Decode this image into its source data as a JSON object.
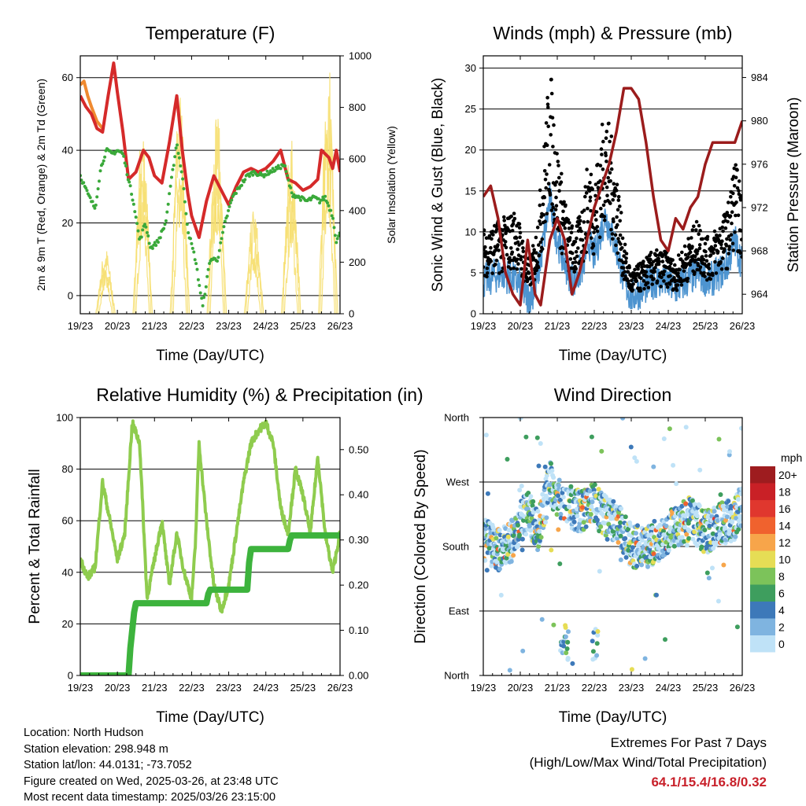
{
  "chart_data": [
    {
      "id": "temperature",
      "type": "line",
      "title": "Temperature (F)",
      "xlabel": "Time (Day/UTC)",
      "ylabel_left": "2m & 9m T (Red, Orange) & 2m Td (Green)",
      "ylabel_right": "Solar Insolation (Yellow)",
      "x_ticks": [
        "19/23",
        "20/23",
        "21/23",
        "22/23",
        "23/23",
        "24/23",
        "25/23",
        "26/23"
      ],
      "xlim": [
        0,
        7
      ],
      "ylim_left": [
        -5,
        66
      ],
      "yticks_left": [
        0,
        20,
        40,
        60
      ],
      "ylim_right": [
        0,
        1000
      ],
      "yticks_right": [
        0,
        200,
        400,
        600,
        800,
        1000
      ],
      "grid": "horizontal",
      "series": [
        {
          "name": "2m T",
          "color": "#d52a2a",
          "axis": "left",
          "x": [
            0,
            0.15,
            0.3,
            0.45,
            0.6,
            0.75,
            0.9,
            1.0,
            1.15,
            1.3,
            1.5,
            1.7,
            1.85,
            2.0,
            2.2,
            2.4,
            2.6,
            2.75,
            2.9,
            3.0,
            3.2,
            3.4,
            3.6,
            3.8,
            4.0,
            4.2,
            4.4,
            4.6,
            4.8,
            5.0,
            5.2,
            5.4,
            5.6,
            5.8,
            6.0,
            6.2,
            6.4,
            6.5,
            6.6,
            6.7,
            6.8,
            6.9,
            7.0
          ],
          "y": [
            55,
            52,
            50,
            46,
            45,
            55,
            64,
            56,
            45,
            32,
            34,
            40,
            38,
            33,
            31,
            42,
            55,
            40,
            28,
            22,
            16,
            26,
            33,
            29,
            25,
            30,
            34,
            35,
            34,
            35,
            37,
            40,
            32,
            31,
            29,
            30,
            32,
            40,
            39,
            38,
            35,
            40,
            34
          ]
        },
        {
          "name": "9m T",
          "color": "#f08a30",
          "axis": "left",
          "x": [
            0,
            0.1,
            0.2,
            0.3,
            0.45,
            0.6
          ],
          "y": [
            58,
            59,
            55,
            52,
            48,
            46
          ]
        },
        {
          "name": "2m Td",
          "color": "#3aa93a",
          "axis": "left",
          "x": [
            0,
            0.2,
            0.4,
            0.55,
            0.7,
            0.85,
            1.0,
            1.15,
            1.3,
            1.45,
            1.6,
            1.75,
            1.9,
            2.1,
            2.3,
            2.5,
            2.6,
            2.75,
            2.9,
            3.1,
            3.3,
            3.5,
            3.7,
            3.9,
            4.1,
            4.3,
            4.5,
            4.7,
            4.9,
            5.1,
            5.3,
            5.5,
            5.7,
            5.9,
            6.1,
            6.3,
            6.45,
            6.6,
            6.8,
            6.9,
            7.0
          ],
          "y": [
            33,
            28,
            24,
            35,
            40,
            39,
            40,
            39,
            32,
            25,
            15,
            20,
            13,
            15,
            20,
            35,
            42,
            33,
            18,
            10,
            -3,
            10,
            10,
            20,
            27,
            30,
            33,
            34,
            33,
            34,
            35,
            36,
            28,
            27,
            26,
            27,
            26,
            27,
            22,
            15,
            17
          ]
        },
        {
          "name": "Solar Insolation",
          "color": "#f6df70",
          "axis": "right",
          "days": [
            0,
            1,
            2,
            3,
            4,
            5,
            6
          ],
          "peaks": [
            260,
            760,
            880,
            810,
            420,
            680,
            1010
          ]
        }
      ]
    },
    {
      "id": "winds",
      "type": "scatter",
      "title": "Winds (mph) & Pressure (mb)",
      "xlabel": "Time (Day/UTC)",
      "ylabel_left": "Sonic Wind & Gust (Blue, Black)",
      "ylabel_right": "Station Pressure (Maroon)",
      "x_ticks": [
        "19/23",
        "20/23",
        "21/23",
        "22/23",
        "23/23",
        "24/23",
        "25/23",
        "26/23"
      ],
      "xlim": [
        0,
        7
      ],
      "ylim_left": [
        0,
        31.5
      ],
      "yticks_left": [
        0,
        5,
        10,
        15,
        20,
        25,
        30
      ],
      "ylim_right": [
        962.2,
        986
      ],
      "yticks_right": [
        964,
        968,
        972,
        976,
        980,
        984
      ],
      "grid": "horizontal",
      "series": [
        {
          "name": "Sonic Wind",
          "color": "#4d94d0",
          "axis": "left",
          "x": [
            0,
            0.5,
            0.9,
            1.2,
            1.4,
            1.6,
            1.8,
            2.0,
            2.3,
            2.5,
            2.7,
            2.85,
            3.0,
            3.3,
            3.6,
            3.8,
            4.0,
            4.3,
            4.6,
            4.9,
            5.2,
            5.5,
            5.8,
            6.1,
            6.4,
            6.6,
            6.8,
            7.0
          ],
          "y": [
            4,
            5,
            4,
            2,
            3,
            8,
            14,
            9,
            5,
            4,
            6,
            9,
            7,
            12,
            8,
            4,
            2,
            3,
            4,
            4,
            3,
            4,
            5,
            4,
            5,
            6,
            9,
            6
          ]
        },
        {
          "name": "Gust",
          "color": "#000000",
          "axis": "left",
          "x": [
            0,
            0.5,
            0.9,
            1.2,
            1.4,
            1.6,
            1.8,
            2.0,
            2.3,
            2.5,
            2.7,
            2.85,
            3.0,
            3.3,
            3.6,
            3.8,
            4.0,
            4.3,
            4.6,
            4.9,
            5.2,
            5.5,
            5.8,
            6.1,
            6.4,
            6.6,
            6.8,
            7.0
          ],
          "y": [
            8,
            9,
            10,
            5,
            7,
            14,
            24,
            16,
            9,
            8,
            11,
            15,
            13,
            20,
            14,
            7,
            4,
            5,
            6,
            6,
            5,
            7,
            9,
            7,
            9,
            10,
            15,
            11
          ]
        },
        {
          "name": "Station Pressure",
          "color": "#9b1c1c",
          "axis": "right",
          "x": [
            0,
            0.2,
            0.4,
            0.6,
            0.8,
            1.0,
            1.2,
            1.4,
            1.55,
            1.8,
            2.0,
            2.2,
            2.4,
            2.6,
            2.8,
            3.0,
            3.2,
            3.4,
            3.6,
            3.8,
            4.0,
            4.2,
            4.4,
            4.6,
            4.8,
            5.0,
            5.2,
            5.4,
            5.6,
            5.8,
            6.0,
            6.2,
            6.4,
            6.6,
            6.8,
            7.0
          ],
          "y": [
            973,
            974,
            971,
            966,
            964,
            963,
            969,
            964,
            963,
            969,
            971,
            969,
            964,
            966,
            969,
            972,
            974,
            976,
            979,
            983,
            983,
            982,
            978,
            973,
            969,
            968,
            971,
            970,
            972,
            973,
            976,
            978,
            978,
            978,
            978,
            980
          ]
        }
      ]
    },
    {
      "id": "humidity",
      "type": "line",
      "title": "Relative Humidity (%) & Precipitation (in)",
      "xlabel": "Time (Day/UTC)",
      "ylabel_left": "Percent & Total Rainfall",
      "x_ticks": [
        "19/23",
        "20/23",
        "21/23",
        "22/23",
        "23/23",
        "24/23",
        "25/23",
        "26/23"
      ],
      "xlim": [
        0,
        7
      ],
      "ylim_left": [
        0,
        100
      ],
      "yticks_left": [
        0,
        20,
        40,
        60,
        80,
        100
      ],
      "ylim_right": [
        0,
        0.571
      ],
      "yticks_right": [
        "0.00",
        "0.10",
        "0.20",
        "0.30",
        "0.40",
        "0.50"
      ],
      "grid": "horizontal",
      "series": [
        {
          "name": "Relative Humidity",
          "color": "#8fcc4e",
          "axis": "left",
          "x": [
            0,
            0.2,
            0.4,
            0.6,
            0.8,
            1.0,
            1.2,
            1.4,
            1.6,
            1.8,
            2.0,
            2.2,
            2.4,
            2.6,
            2.8,
            3.0,
            3.1,
            3.2,
            3.4,
            3.6,
            3.8,
            4.0,
            4.2,
            4.4,
            4.6,
            4.8,
            5.0,
            5.2,
            5.4,
            5.6,
            5.8,
            6.0,
            6.2,
            6.4,
            6.6,
            6.8,
            7.0
          ],
          "y": [
            45,
            38,
            42,
            75,
            60,
            45,
            55,
            98,
            90,
            30,
            45,
            60,
            35,
            55,
            40,
            30,
            50,
            90,
            60,
            35,
            25,
            35,
            55,
            75,
            90,
            95,
            98,
            90,
            65,
            55,
            80,
            70,
            55,
            85,
            55,
            40,
            55
          ]
        },
        {
          "name": "Total Precipitation",
          "color": "#3db33d",
          "axis": "right",
          "x": [
            0,
            1.3,
            1.35,
            1.4,
            1.45,
            1.5,
            3.4,
            3.45,
            3.5,
            4.5,
            4.55,
            4.6,
            5.6,
            5.65,
            5.7,
            7.0
          ],
          "y": [
            0,
            0,
            0.06,
            0.1,
            0.14,
            0.16,
            0.16,
            0.18,
            0.19,
            0.19,
            0.25,
            0.28,
            0.28,
            0.3,
            0.31,
            0.31
          ]
        }
      ]
    },
    {
      "id": "wind_direction",
      "type": "scatter",
      "title": "Wind Direction",
      "xlabel": "Time (Day/UTC)",
      "ylabel_left": "Direction (Colored By Speed)",
      "x_ticks": [
        "19/23",
        "20/23",
        "21/23",
        "22/23",
        "23/23",
        "24/23",
        "25/23",
        "26/23"
      ],
      "xlim": [
        0,
        7
      ],
      "ylim_left": [
        0,
        360
      ],
      "y_tick_labels": [
        "North",
        "East",
        "South",
        "West",
        "North"
      ],
      "y_tick_values": [
        0,
        90,
        180,
        270,
        360
      ],
      "grid": "horizontal",
      "direction_track": {
        "x": [
          0,
          0.4,
          0.8,
          1.0,
          1.2,
          1.5,
          1.8,
          2.0,
          2.2,
          2.5,
          2.8,
          3.0,
          3.3,
          3.6,
          3.8,
          4.0,
          4.4,
          4.8,
          5.2,
          5.6,
          6.0,
          6.4,
          6.8,
          7.0
        ],
        "y": [
          190,
          175,
          190,
          215,
          230,
          200,
          270,
          250,
          240,
          230,
          230,
          240,
          220,
          210,
          200,
          180,
          180,
          190,
          210,
          220,
          200,
          210,
          220,
          240
        ]
      },
      "colorbar": {
        "unit": "mph",
        "labels": [
          "20+",
          "18",
          "16",
          "14",
          "12",
          "10",
          "8",
          "6",
          "4",
          "2",
          "0"
        ],
        "colors": [
          "#9e1c1f",
          "#c92026",
          "#e0372e",
          "#f0622e",
          "#f7a54a",
          "#e6dd55",
          "#7cc35a",
          "#3e9e5e",
          "#3d79b9",
          "#7fb4e0",
          "#bfe2f7"
        ]
      }
    }
  ],
  "info": {
    "location": "Location: North Hudson",
    "elevation": "Station elevation: 298.948 m",
    "latlon": "Station lat/lon: 44.0131; -73.7052",
    "created": "Figure created on Wed, 2025-03-26, at 23:48 UTC",
    "recent": "Most recent data timestamp: 2025/03/26 23:15:00"
  },
  "extremes": {
    "title": "Extremes For Past 7 Days",
    "subtitle": "(High/Low/Max Wind/Total Precipitation)",
    "values": "64.1/15.4/16.8/0.32"
  }
}
